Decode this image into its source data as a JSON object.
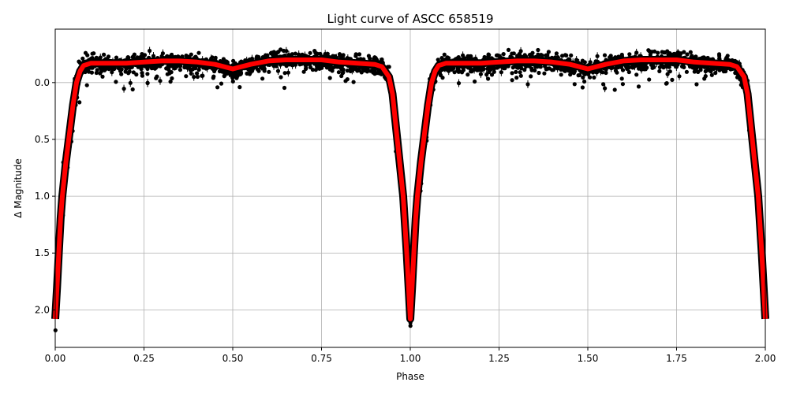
{
  "chart_data": {
    "type": "scatter",
    "title": "Light curve of ASCC 658519",
    "xlabel": "Phase",
    "ylabel": "Δ Magnitude",
    "xlim": [
      0.0,
      2.0
    ],
    "ylim": [
      2.33,
      -0.47
    ],
    "y_inverted": true,
    "grid": true,
    "x_ticks": [
      "0.00",
      "0.25",
      "0.50",
      "0.75",
      "1.00",
      "1.25",
      "1.50",
      "1.75",
      "2.00"
    ],
    "y_ticks": [
      "0.0",
      "0.5",
      "1.0",
      "1.5",
      "2.0"
    ],
    "colors": {
      "observations": "#000000",
      "model": "#ff0000"
    },
    "series": [
      {
        "type": "line",
        "color": "#ff0000",
        "x": [
          0.0,
          0.005,
          0.01,
          0.015,
          0.02,
          0.03,
          0.04,
          0.05,
          0.06,
          0.07,
          0.08,
          0.1,
          0.15,
          0.2,
          0.25,
          0.3,
          0.35,
          0.4,
          0.45,
          0.5,
          0.55,
          0.6,
          0.65,
          0.7,
          0.75,
          0.8,
          0.85,
          0.9,
          0.92,
          0.94,
          0.95,
          0.96,
          0.97,
          0.98,
          0.99,
          1.0,
          1.005,
          1.01,
          1.015,
          1.02,
          1.03,
          1.04,
          1.05,
          1.06,
          1.07,
          1.08,
          1.1,
          1.15,
          1.2,
          1.25,
          1.3,
          1.35,
          1.4,
          1.45,
          1.5,
          1.55,
          1.6,
          1.65,
          1.7,
          1.75,
          1.8,
          1.85,
          1.9,
          1.92,
          1.94,
          1.95,
          1.96,
          1.97,
          1.98,
          1.99,
          2.0
        ],
        "y": [
          2.08,
          1.8,
          1.5,
          1.2,
          1.0,
          0.7,
          0.45,
          0.2,
          0.0,
          -0.1,
          -0.15,
          -0.17,
          -0.17,
          -0.17,
          -0.18,
          -0.19,
          -0.19,
          -0.18,
          -0.16,
          -0.12,
          -0.16,
          -0.19,
          -0.2,
          -0.2,
          -0.2,
          -0.18,
          -0.17,
          -0.16,
          -0.14,
          -0.05,
          0.1,
          0.4,
          0.7,
          1.0,
          1.5,
          2.08,
          1.8,
          1.5,
          1.2,
          1.0,
          0.7,
          0.45,
          0.2,
          0.0,
          -0.1,
          -0.15,
          -0.17,
          -0.17,
          -0.17,
          -0.18,
          -0.19,
          -0.19,
          -0.18,
          -0.16,
          -0.12,
          -0.16,
          -0.19,
          -0.2,
          -0.2,
          -0.2,
          -0.18,
          -0.17,
          -0.16,
          -0.14,
          -0.05,
          0.1,
          0.4,
          0.7,
          1.0,
          1.5,
          2.08
        ]
      },
      {
        "type": "scatter_errorbar",
        "color": "#000000",
        "scatter_about_model": 0.06,
        "outliers_y_range": [
          -0.4,
          0.25
        ]
      }
    ]
  }
}
